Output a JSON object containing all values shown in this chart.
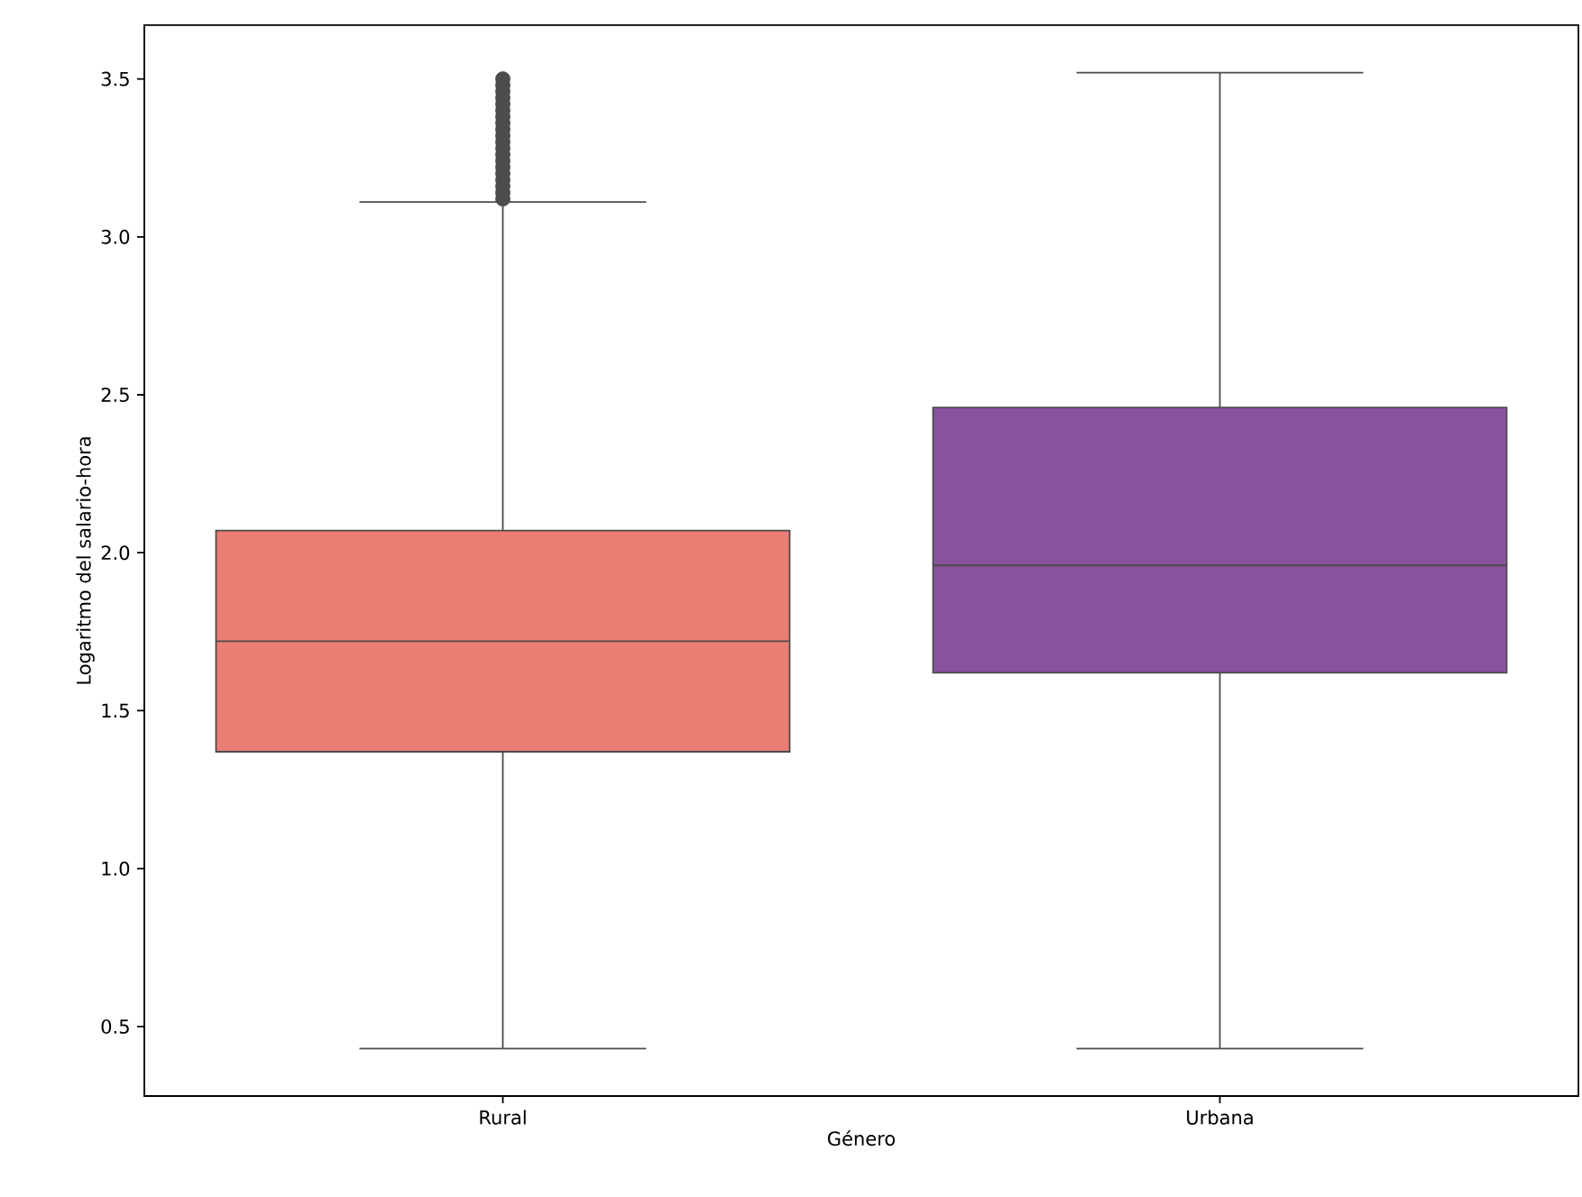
{
  "chart_data": {
    "type": "box",
    "xlabel": "Género",
    "ylabel": "Logaritmo del salario-hora",
    "categories": [
      "Rural",
      "Urbana"
    ],
    "colors": [
      "#ea7d74",
      "#8a519e"
    ],
    "boxes": [
      {
        "low": 0.43,
        "q1": 1.37,
        "median": 1.72,
        "q3": 2.07,
        "high": 3.11,
        "outliers": [
          3.12,
          3.14,
          3.16,
          3.18,
          3.2,
          3.22,
          3.24,
          3.26,
          3.28,
          3.3,
          3.32,
          3.34,
          3.36,
          3.38,
          3.4,
          3.42,
          3.44,
          3.46,
          3.48,
          3.5
        ]
      },
      {
        "low": 0.43,
        "q1": 1.62,
        "median": 1.96,
        "q3": 2.46,
        "high": 3.52
      }
    ],
    "ylim": [
      0.28,
      3.67
    ],
    "yticks": [
      0.5,
      {
        "value": 1,
        "label": "1.0"
      },
      1.5,
      {
        "value": 2,
        "label": "2.0"
      },
      2.5,
      {
        "value": 3,
        "label": "3.0"
      },
      3.5
    ]
  }
}
